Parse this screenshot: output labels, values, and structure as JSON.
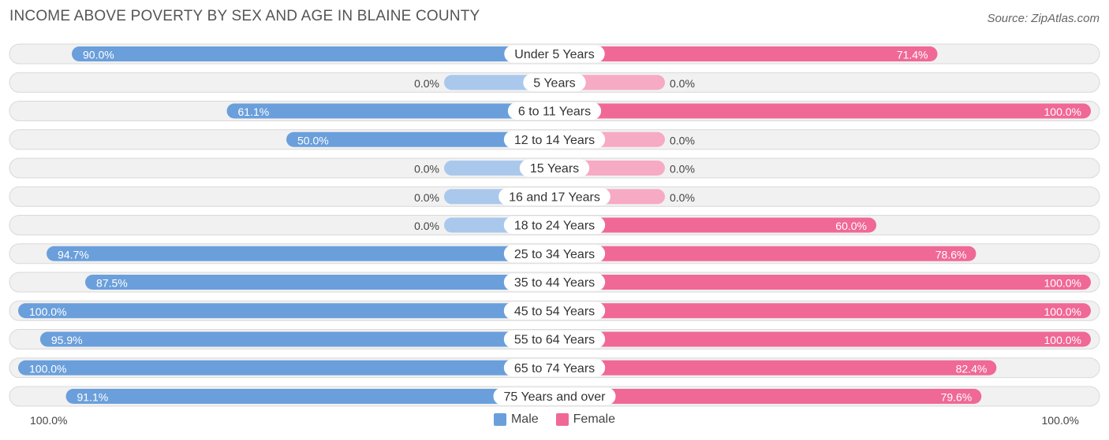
{
  "title": "INCOME ABOVE POVERTY BY SEX AND AGE IN BLAINE COUNTY",
  "source": "Source: ZipAtlas.com",
  "colors": {
    "male_strong": "#6a9fdb",
    "male_light": "#aac8ec",
    "female_strong": "#f06896",
    "female_light": "#f7aac4",
    "row_bg": "#f1f1f1",
    "row_border": "#d9d9d9"
  },
  "legend": {
    "male": "Male",
    "female": "Female"
  },
  "axis": {
    "left": "100.0%",
    "right": "100.0%"
  },
  "chart_data": {
    "type": "bar",
    "orientation": "horizontal-diverging",
    "categories": [
      "Under 5 Years",
      "5 Years",
      "6 to 11 Years",
      "12 to 14 Years",
      "15 Years",
      "16 and 17 Years",
      "18 to 24 Years",
      "25 to 34 Years",
      "35 to 44 Years",
      "45 to 54 Years",
      "55 to 64 Years",
      "65 to 74 Years",
      "75 Years and over"
    ],
    "series": [
      {
        "name": "Male",
        "values": [
          90.0,
          0.0,
          61.1,
          50.0,
          0.0,
          0.0,
          0.0,
          94.7,
          87.5,
          100.0,
          95.9,
          100.0,
          91.1
        ],
        "labels": [
          "90.0%",
          "0.0%",
          "61.1%",
          "50.0%",
          "0.0%",
          "0.0%",
          "0.0%",
          "94.7%",
          "87.5%",
          "100.0%",
          "95.9%",
          "100.0%",
          "91.1%"
        ]
      },
      {
        "name": "Female",
        "values": [
          71.4,
          0.0,
          100.0,
          0.0,
          0.0,
          0.0,
          60.0,
          78.6,
          100.0,
          100.0,
          100.0,
          82.4,
          79.6
        ],
        "labels": [
          "71.4%",
          "0.0%",
          "100.0%",
          "0.0%",
          "0.0%",
          "0.0%",
          "60.0%",
          "78.6%",
          "100.0%",
          "100.0%",
          "100.0%",
          "82.4%",
          "79.6%"
        ]
      }
    ],
    "xlim": [
      0,
      100
    ],
    "legend_position": "bottom-center"
  }
}
